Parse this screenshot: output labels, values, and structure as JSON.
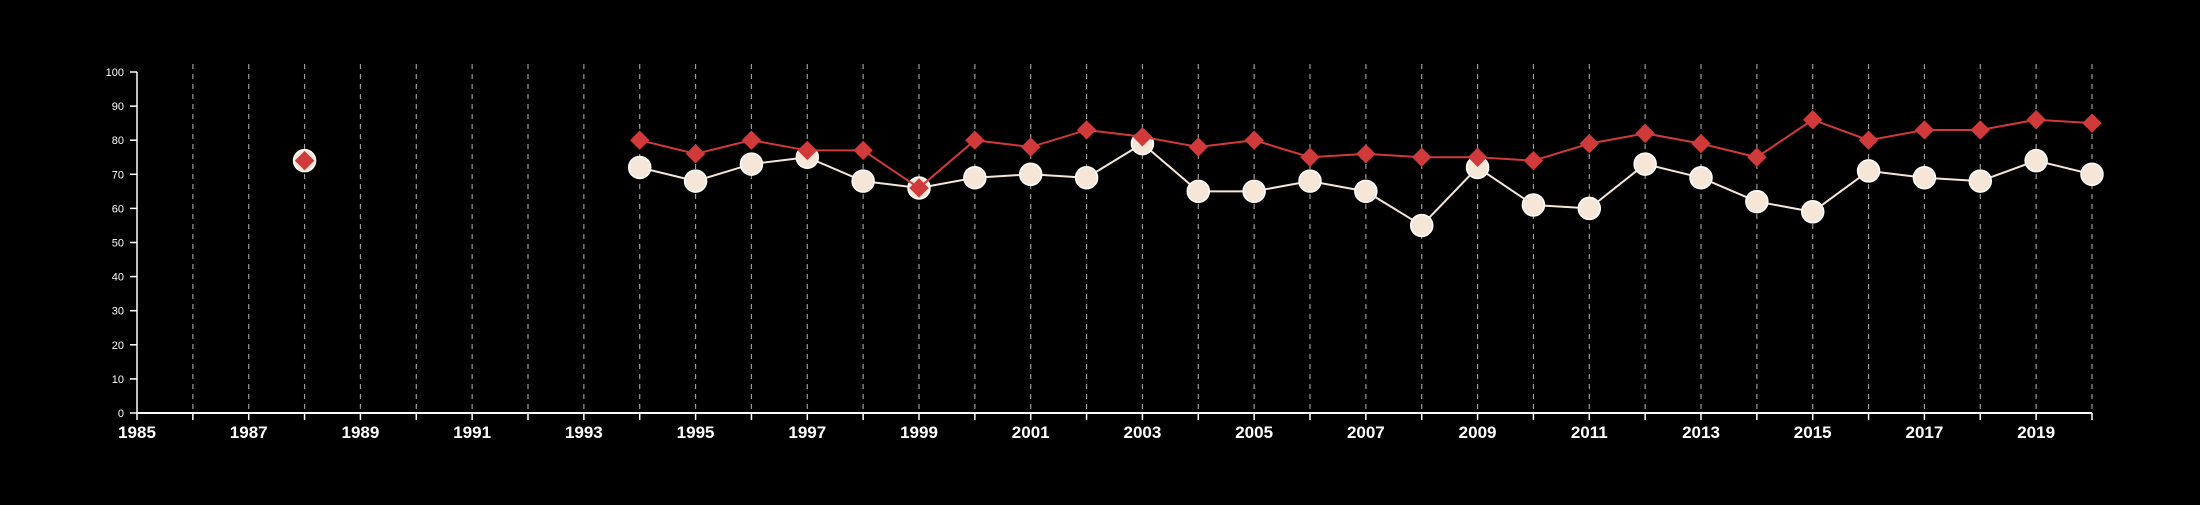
{
  "chart_data": {
    "type": "line",
    "title": "",
    "xlabel": "",
    "ylabel": "",
    "xlim": [
      1985,
      2020
    ],
    "ylim": [
      0,
      100
    ],
    "y_ticks": [
      0,
      10,
      20,
      30,
      40,
      50,
      60,
      70,
      80,
      90,
      100
    ],
    "x_tick_labels": [
      1985,
      1987,
      1989,
      1991,
      1993,
      1995,
      1997,
      1999,
      2001,
      2003,
      2005,
      2007,
      2009,
      2011,
      2013,
      2015,
      2017,
      2019
    ],
    "vertical_gridlines_every_year": true,
    "background_color": "#000000",
    "series": [
      {
        "marker": "circle",
        "color": "#f5e6d8",
        "points": [
          [
            1988,
            74
          ],
          [
            1994,
            72
          ],
          [
            1995,
            68
          ],
          [
            1996,
            73
          ],
          [
            1997,
            75
          ],
          [
            1998,
            68
          ],
          [
            1999,
            66
          ],
          [
            2000,
            69
          ],
          [
            2001,
            70
          ],
          [
            2002,
            69
          ],
          [
            2003,
            79
          ],
          [
            2004,
            65
          ],
          [
            2005,
            65
          ],
          [
            2006,
            68
          ],
          [
            2007,
            65
          ],
          [
            2008,
            55
          ],
          [
            2009,
            72
          ],
          [
            2010,
            61
          ],
          [
            2011,
            60
          ],
          [
            2012,
            73
          ],
          [
            2013,
            69
          ],
          [
            2014,
            62
          ],
          [
            2015,
            59
          ],
          [
            2016,
            71
          ],
          [
            2017,
            69
          ],
          [
            2018,
            68
          ],
          [
            2019,
            74
          ],
          [
            2020,
            70
          ]
        ]
      },
      {
        "marker": "diamond",
        "color": "#d03a3a",
        "points": [
          [
            1988,
            74
          ],
          [
            1994,
            80
          ],
          [
            1995,
            76
          ],
          [
            1996,
            80
          ],
          [
            1997,
            77
          ],
          [
            1998,
            77
          ],
          [
            1999,
            66
          ],
          [
            2000,
            80
          ],
          [
            2001,
            78
          ],
          [
            2002,
            83
          ],
          [
            2003,
            81
          ],
          [
            2004,
            78
          ],
          [
            2005,
            80
          ],
          [
            2006,
            75
          ],
          [
            2007,
            76
          ],
          [
            2008,
            75
          ],
          [
            2009,
            75
          ],
          [
            2010,
            74
          ],
          [
            2011,
            79
          ],
          [
            2012,
            82
          ],
          [
            2013,
            79
          ],
          [
            2014,
            75
          ],
          [
            2015,
            86
          ],
          [
            2016,
            80
          ],
          [
            2017,
            83
          ],
          [
            2018,
            83
          ],
          [
            2019,
            86
          ],
          [
            2020,
            85
          ]
        ]
      }
    ]
  }
}
